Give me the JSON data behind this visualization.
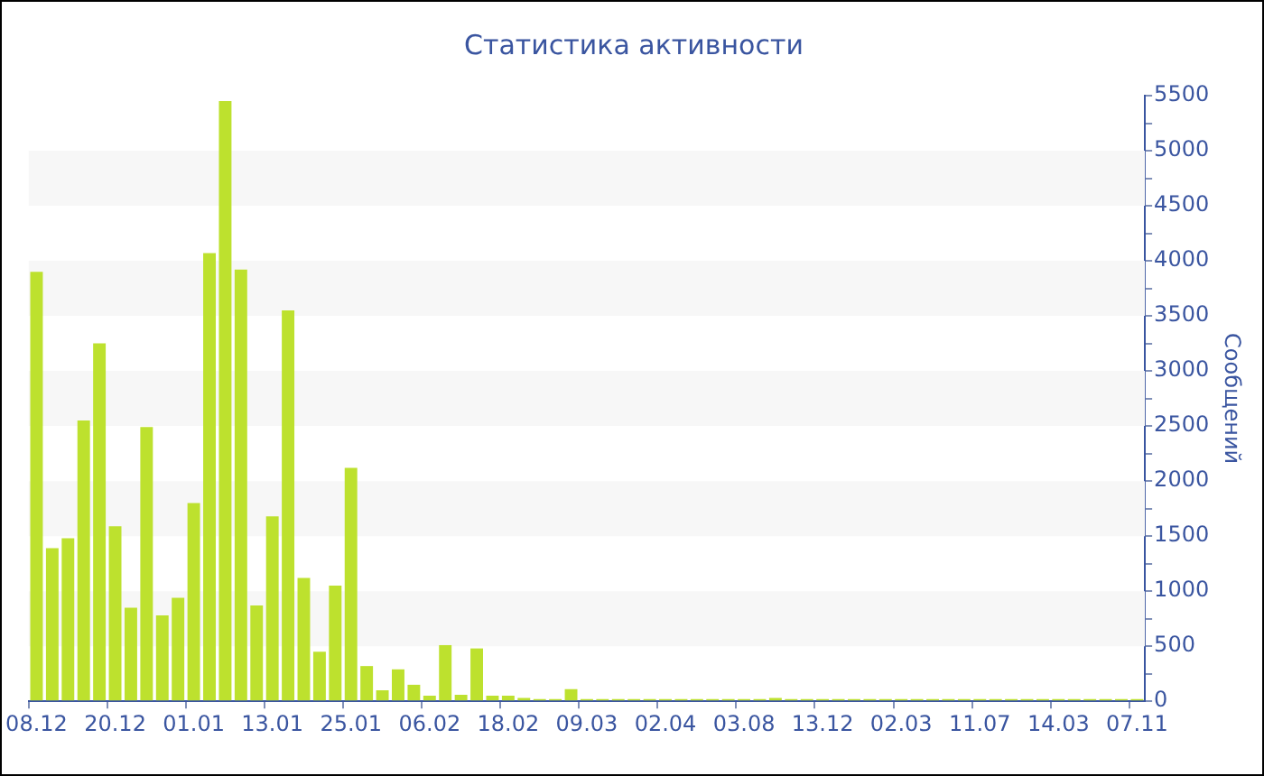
{
  "chart_data": {
    "type": "bar",
    "title": "Статистика активности",
    "ylabel": "Сообщений",
    "categories": [
      "08.12",
      null,
      null,
      null,
      null,
      "20.12",
      null,
      null,
      null,
      null,
      "01.01",
      null,
      null,
      null,
      null,
      "13.01",
      null,
      null,
      null,
      null,
      "25.01",
      null,
      null,
      null,
      null,
      "06.02",
      null,
      null,
      null,
      null,
      "18.02",
      null,
      null,
      null,
      null,
      "09.03",
      null,
      null,
      null,
      null,
      "02.04",
      null,
      null,
      null,
      null,
      "03.08",
      null,
      null,
      null,
      null,
      "13.12",
      null,
      null,
      null,
      null,
      "02.03",
      null,
      null,
      null,
      null,
      "11.07",
      null,
      null,
      null,
      null,
      "14.03",
      null,
      null,
      null,
      null,
      "07.11"
    ],
    "values": [
      3900,
      1390,
      1480,
      2550,
      3250,
      1590,
      850,
      2490,
      780,
      940,
      1800,
      4070,
      5450,
      3920,
      870,
      1680,
      3550,
      1120,
      450,
      1050,
      2120,
      320,
      100,
      290,
      150,
      50,
      510,
      60,
      480,
      50,
      50,
      30,
      20,
      20,
      110,
      20,
      20,
      20,
      20,
      20,
      20,
      20,
      20,
      20,
      20,
      20,
      20,
      30,
      20,
      20,
      20,
      20,
      20,
      20,
      20,
      20,
      20,
      20,
      20,
      20,
      20,
      20,
      20,
      20,
      20,
      20,
      20,
      20,
      20,
      20,
      20
    ],
    "color": "#bde12e",
    "ylim": [
      0,
      5500
    ],
    "yticks": [
      0,
      {
        "value": 250,
        "label": null
      },
      500,
      {
        "value": 750,
        "label": null
      },
      1000,
      {
        "value": 1250,
        "label": null
      },
      1500,
      {
        "value": 1750,
        "label": null
      },
      2000,
      {
        "value": 2250,
        "label": null
      },
      2500,
      {
        "value": 2750,
        "label": null
      },
      3000,
      {
        "value": 3250,
        "label": null
      },
      3500,
      {
        "value": 3750,
        "label": null
      },
      4000,
      {
        "value": 4250,
        "label": null
      },
      4500,
      {
        "value": 4750,
        "label": null
      },
      5000,
      {
        "value": 5250,
        "label": null
      },
      5500
    ],
    "grid": false
  }
}
